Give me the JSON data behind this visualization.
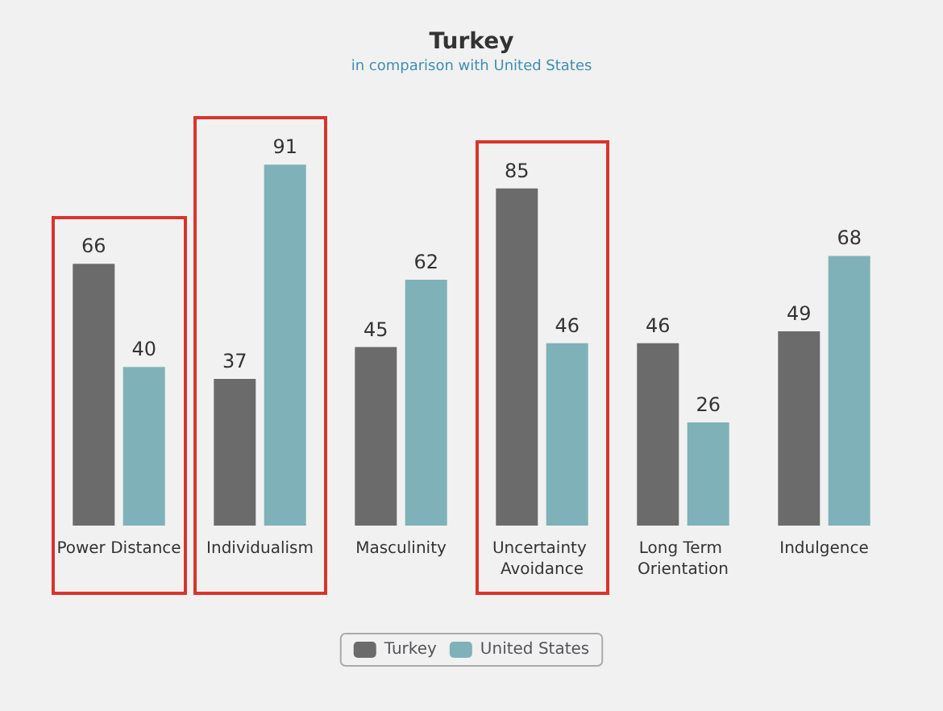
{
  "chart_data": {
    "type": "bar",
    "title": "Turkey",
    "subtitle": "in comparison with United States",
    "categories": [
      "Power Distance",
      "Individualism",
      "Masculinity",
      "Uncertainty Avoidance",
      "Long Term Orientation",
      "Indulgence"
    ],
    "series": [
      {
        "name": "Turkey",
        "color": "#6b6b6b",
        "values": [
          66,
          37,
          45,
          85,
          46,
          49
        ]
      },
      {
        "name": "United States",
        "color": "#7fb1b8",
        "values": [
          40,
          91,
          62,
          46,
          26,
          68
        ]
      }
    ],
    "data_labels": true,
    "legend": "bottom"
  }
}
